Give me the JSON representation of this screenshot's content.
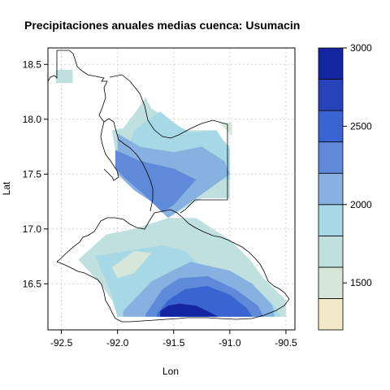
{
  "title": "Precipitaciones anuales medias cuenca: Usumacin",
  "xlabel": "Lon",
  "ylabel": "Lat",
  "x_ticks": [
    "-92.5",
    "-92.0",
    "-91.5",
    "-91.0",
    "-90.5"
  ],
  "y_ticks": [
    "16.5",
    "17.0",
    "17.5",
    "18.0",
    "18.5"
  ],
  "legend": {
    "ticks": [
      "1500",
      "2000",
      "2500",
      "3000"
    ],
    "levels": [
      {
        "range": [
          1200,
          1400
        ],
        "color": "#f1e9c8"
      },
      {
        "range": [
          1400,
          1600
        ],
        "color": "#d6e6d8"
      },
      {
        "range": [
          1600,
          1800
        ],
        "color": "#c0e0df"
      },
      {
        "range": [
          1800,
          2000
        ],
        "color": "#a6d8e6"
      },
      {
        "range": [
          2000,
          2200
        ],
        "color": "#87b1e0"
      },
      {
        "range": [
          2200,
          2400
        ],
        "color": "#5f8ad9"
      },
      {
        "range": [
          2400,
          2600
        ],
        "color": "#3a64d1"
      },
      {
        "range": [
          2600,
          2800
        ],
        "color": "#2643b9"
      },
      {
        "range": [
          2800,
          3000
        ],
        "color": "#1325a0"
      }
    ]
  },
  "chart_data": {
    "type": "heatmap",
    "title": "Precipitaciones anuales medias cuenca: Usumacin",
    "xlabel": "Lon",
    "ylabel": "Lat",
    "xlim": [
      -92.62,
      -90.42
    ],
    "ylim": [
      16.08,
      18.65
    ],
    "grid": true,
    "legend": "right",
    "value_range": [
      1200,
      3000
    ],
    "regions": [
      {
        "level": 1600,
        "polygon": [
          [
            -92.55,
            18.45
          ],
          [
            -92.4,
            18.45
          ],
          [
            -92.4,
            18.33
          ],
          [
            -92.55,
            18.33
          ]
        ]
      },
      {
        "level": 1600,
        "polygon": [
          [
            -91.75,
            18.2
          ],
          [
            -91.7,
            18.1
          ],
          [
            -91.5,
            17.97
          ],
          [
            -91.4,
            17.9
          ],
          [
            -91.18,
            17.9
          ],
          [
            -91.15,
            17.9
          ],
          [
            -91.0,
            17.75
          ],
          [
            -91.0,
            17.28
          ],
          [
            -91.25,
            17.28
          ],
          [
            -91.55,
            17.1
          ],
          [
            -91.65,
            17.25
          ],
          [
            -91.75,
            17.3
          ],
          [
            -92.0,
            17.6
          ],
          [
            -92.05,
            17.9
          ],
          [
            -91.95,
            17.92
          ],
          [
            -91.85,
            18.05
          ]
        ]
      },
      {
        "level": 1800,
        "polygon": [
          [
            -91.62,
            18.07
          ],
          [
            -91.48,
            17.95
          ],
          [
            -91.35,
            17.88
          ],
          [
            -91.12,
            17.9
          ],
          [
            -91.0,
            17.72
          ],
          [
            -91.0,
            17.45
          ],
          [
            -91.3,
            17.45
          ],
          [
            -91.6,
            17.5
          ],
          [
            -91.9,
            17.75
          ],
          [
            -91.85,
            17.9
          ]
        ]
      },
      {
        "level": 2000,
        "polygon": [
          [
            -92.0,
            17.87
          ],
          [
            -91.8,
            17.75
          ],
          [
            -91.5,
            17.7
          ],
          [
            -91.25,
            17.75
          ],
          [
            -91.05,
            17.62
          ],
          [
            -91.0,
            17.5
          ],
          [
            -91.3,
            17.28
          ],
          [
            -91.55,
            17.1
          ],
          [
            -91.7,
            17.25
          ],
          [
            -91.85,
            17.35
          ],
          [
            -92.0,
            17.5
          ]
        ]
      },
      {
        "level": 2200,
        "polygon": [
          [
            -92.02,
            17.72
          ],
          [
            -91.8,
            17.62
          ],
          [
            -91.5,
            17.55
          ],
          [
            -91.3,
            17.45
          ],
          [
            -91.5,
            17.22
          ],
          [
            -91.6,
            17.15
          ],
          [
            -91.75,
            17.3
          ],
          [
            -91.92,
            17.45
          ],
          [
            -92.02,
            17.55
          ]
        ]
      },
      {
        "level": 1600,
        "polygon": [
          [
            -92.35,
            16.72
          ],
          [
            -92.1,
            16.95
          ],
          [
            -91.85,
            17.0
          ],
          [
            -91.55,
            17.1
          ],
          [
            -91.3,
            17.1
          ],
          [
            -91.0,
            16.9
          ],
          [
            -90.82,
            16.72
          ],
          [
            -90.7,
            16.55
          ],
          [
            -90.5,
            16.35
          ],
          [
            -90.5,
            16.2
          ],
          [
            -92.0,
            16.2
          ],
          [
            -92.05,
            16.35
          ],
          [
            -92.15,
            16.5
          ]
        ]
      },
      {
        "level": 1800,
        "polygon": [
          [
            -92.2,
            16.75
          ],
          [
            -91.8,
            16.82
          ],
          [
            -91.6,
            16.85
          ],
          [
            -91.4,
            16.8
          ],
          [
            -91.2,
            16.6
          ],
          [
            -90.95,
            16.55
          ],
          [
            -90.75,
            16.45
          ],
          [
            -90.6,
            16.3
          ],
          [
            -90.55,
            16.2
          ],
          [
            -92.0,
            16.2
          ],
          [
            -92.05,
            16.4
          ]
        ]
      },
      {
        "level": 2000,
        "polygon": [
          [
            -91.95,
            16.25
          ],
          [
            -91.7,
            16.52
          ],
          [
            -91.55,
            16.6
          ],
          [
            -91.35,
            16.7
          ],
          [
            -91.0,
            16.62
          ],
          [
            -90.8,
            16.5
          ],
          [
            -90.62,
            16.3
          ],
          [
            -90.6,
            16.2
          ],
          [
            -91.95,
            16.2
          ]
        ]
      },
      {
        "level": 2200,
        "polygon": [
          [
            -91.75,
            16.22
          ],
          [
            -91.6,
            16.45
          ],
          [
            -91.45,
            16.55
          ],
          [
            -91.2,
            16.57
          ],
          [
            -90.95,
            16.45
          ],
          [
            -90.75,
            16.3
          ],
          [
            -90.7,
            16.2
          ],
          [
            -91.75,
            16.2
          ]
        ]
      },
      {
        "level": 2400,
        "polygon": [
          [
            -91.65,
            16.22
          ],
          [
            -91.55,
            16.35
          ],
          [
            -91.4,
            16.45
          ],
          [
            -91.2,
            16.48
          ],
          [
            -91.0,
            16.4
          ],
          [
            -90.85,
            16.28
          ],
          [
            -90.8,
            16.2
          ],
          [
            -91.65,
            16.2
          ]
        ]
      },
      {
        "level": 2800,
        "polygon": [
          [
            -91.62,
            16.25
          ],
          [
            -91.55,
            16.3
          ],
          [
            -91.45,
            16.32
          ],
          [
            -91.3,
            16.3
          ],
          [
            -91.2,
            16.25
          ],
          [
            -91.1,
            16.2
          ],
          [
            -91.62,
            16.2
          ]
        ]
      },
      {
        "level": 1400,
        "polygon": [
          [
            -92.05,
            16.65
          ],
          [
            -91.85,
            16.8
          ],
          [
            -91.7,
            16.78
          ],
          [
            -91.85,
            16.6
          ],
          [
            -92.0,
            16.55
          ]
        ]
      },
      {
        "level": 1400,
        "polygon": [
          [
            -91.1,
            17.97
          ],
          [
            -90.98,
            17.97
          ],
          [
            -90.98,
            17.85
          ]
        ]
      }
    ]
  }
}
